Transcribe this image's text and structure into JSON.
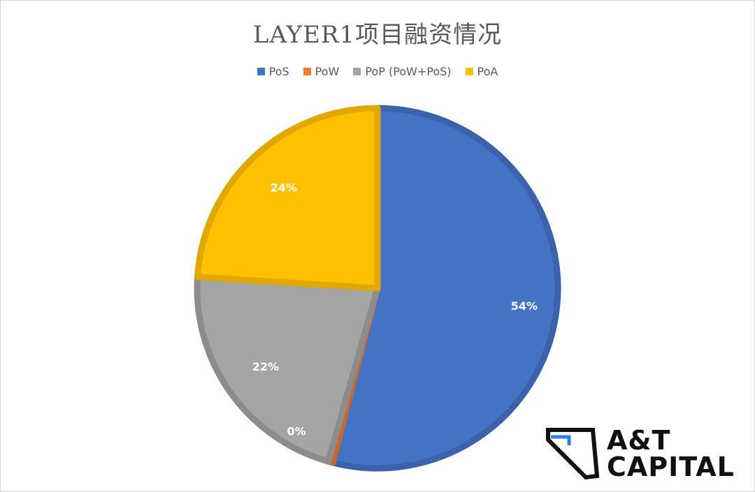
{
  "chart_data": {
    "type": "pie",
    "title": "LAYER1项目融资情况",
    "legend_position": "top",
    "slices": [
      {
        "label": "PoS",
        "value": 54,
        "value_label": "54%",
        "color": "#4472c4",
        "border": "#3b63ab"
      },
      {
        "label": "PoW",
        "value": 0.4,
        "value_label": "0%",
        "color": "#ed7d31",
        "border": "#c9682a"
      },
      {
        "label": "PoP (PoW+PoS)",
        "value": 21.6,
        "value_label": "22%",
        "color": "#a5a5a5",
        "border": "#8c8c8c"
      },
      {
        "label": "PoA",
        "value": 24,
        "value_label": "24%",
        "color": "#ffc000",
        "border": "#e0a800"
      }
    ]
  },
  "logo": {
    "line1": "A&T",
    "line2": "CAPITAL",
    "accent_color": "#2f7fd9"
  }
}
